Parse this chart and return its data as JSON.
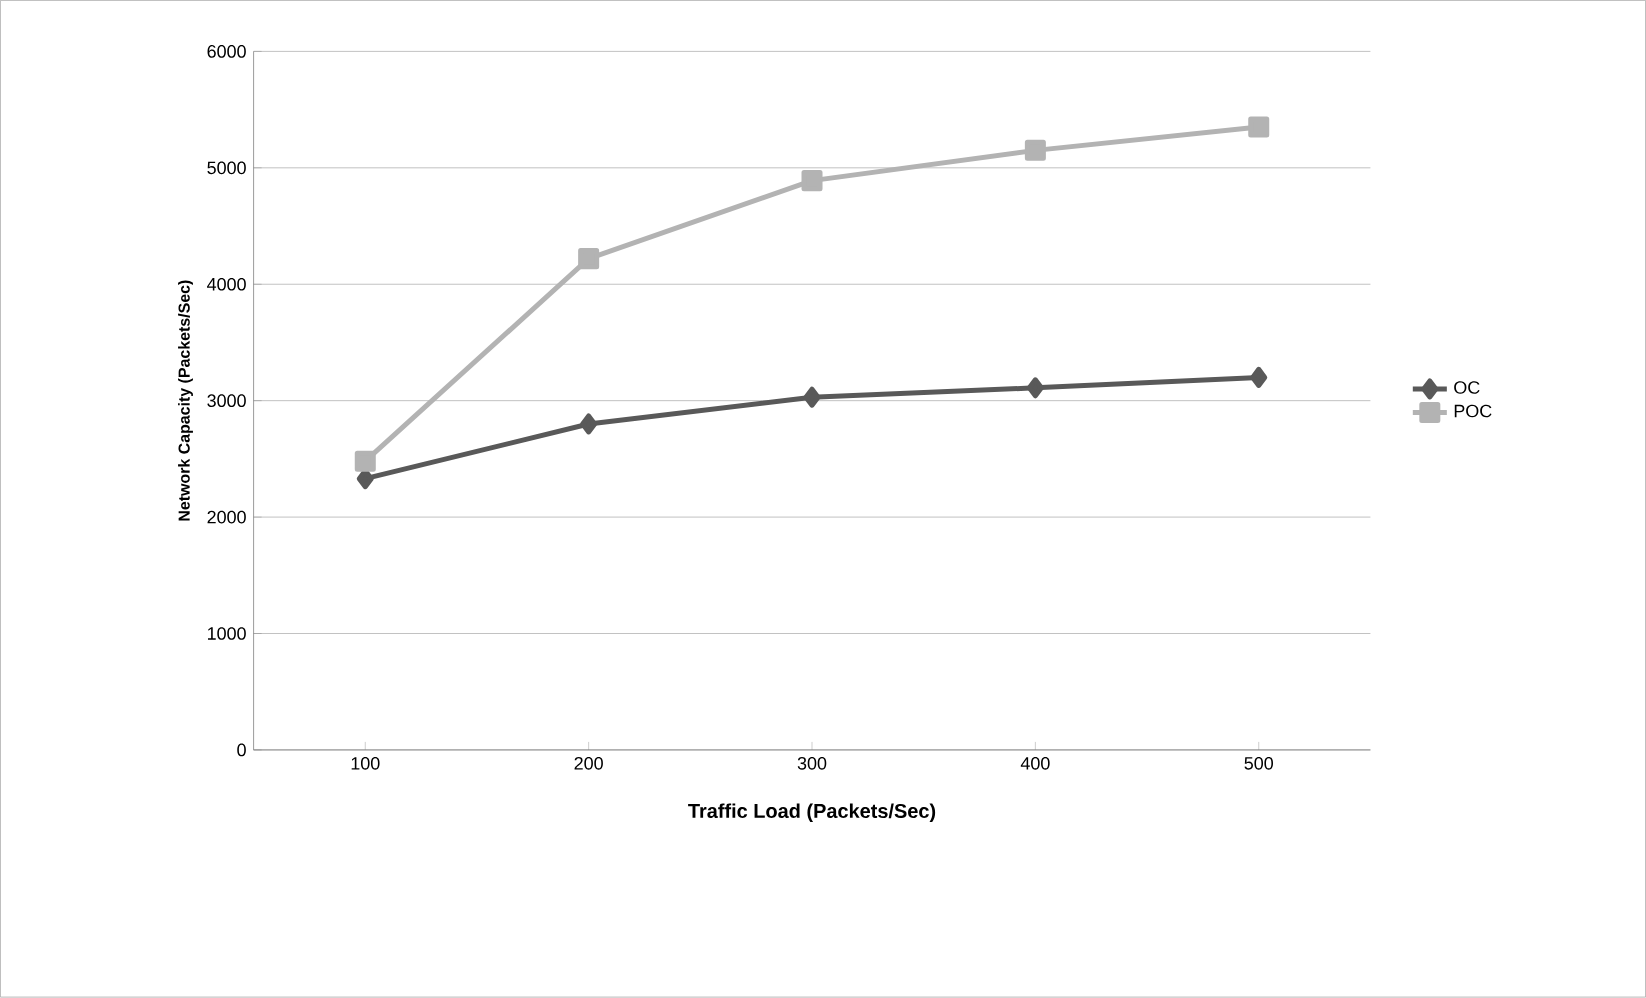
{
  "chart_data": {
    "type": "line",
    "xlabel": "Traffic Load (Packets/Sec)",
    "ylabel": "Network Capacity  (Packets/Sec)",
    "categories": [
      "100",
      "200",
      "300",
      "400",
      "500"
    ],
    "series": [
      {
        "name": "OC",
        "color": "#595959",
        "marker": "diamond",
        "values": [
          2330,
          2800,
          3030,
          3110,
          3200
        ]
      },
      {
        "name": "POC",
        "color": "#b3b3b3",
        "marker": "square",
        "values": [
          2480,
          4220,
          4890,
          5150,
          5350
        ]
      }
    ],
    "ylim": [
      0,
      6000
    ],
    "yticks": [
      0,
      1000,
      2000,
      3000,
      4000,
      5000,
      6000
    ],
    "grid": "y",
    "legend": "right",
    "line_style": "solid"
  }
}
